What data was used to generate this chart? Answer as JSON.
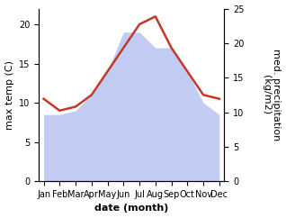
{
  "months": [
    "Jan",
    "Feb",
    "Mar",
    "Apr",
    "May",
    "Jun",
    "Jul",
    "Aug",
    "Sep",
    "Oct",
    "Nov",
    "Dec"
  ],
  "temp": [
    10.5,
    9.0,
    9.5,
    11.0,
    14.0,
    17.0,
    20.0,
    21.0,
    17.0,
    14.0,
    11.0,
    10.5
  ],
  "precip": [
    8.5,
    8.5,
    9.0,
    11.0,
    14.0,
    19.0,
    19.0,
    17.0,
    17.0,
    14.0,
    10.0,
    8.5
  ],
  "temp_color": "#c0392b",
  "precip_fill_color": "#b8c4f0",
  "temp_linewidth": 1.8,
  "ylim_left": [
    0,
    22
  ],
  "ylim_right": [
    0,
    25
  ],
  "yticks_left": [
    0,
    5,
    10,
    15,
    20
  ],
  "yticks_right": [
    0,
    5,
    10,
    15,
    20,
    25
  ],
  "xlabel": "date (month)",
  "ylabel_left": "max temp (C)",
  "ylabel_right": "med. precipitation\n(kg/m2)",
  "background_color": "#ffffff",
  "label_fontsize": 8,
  "tick_fontsize": 7
}
